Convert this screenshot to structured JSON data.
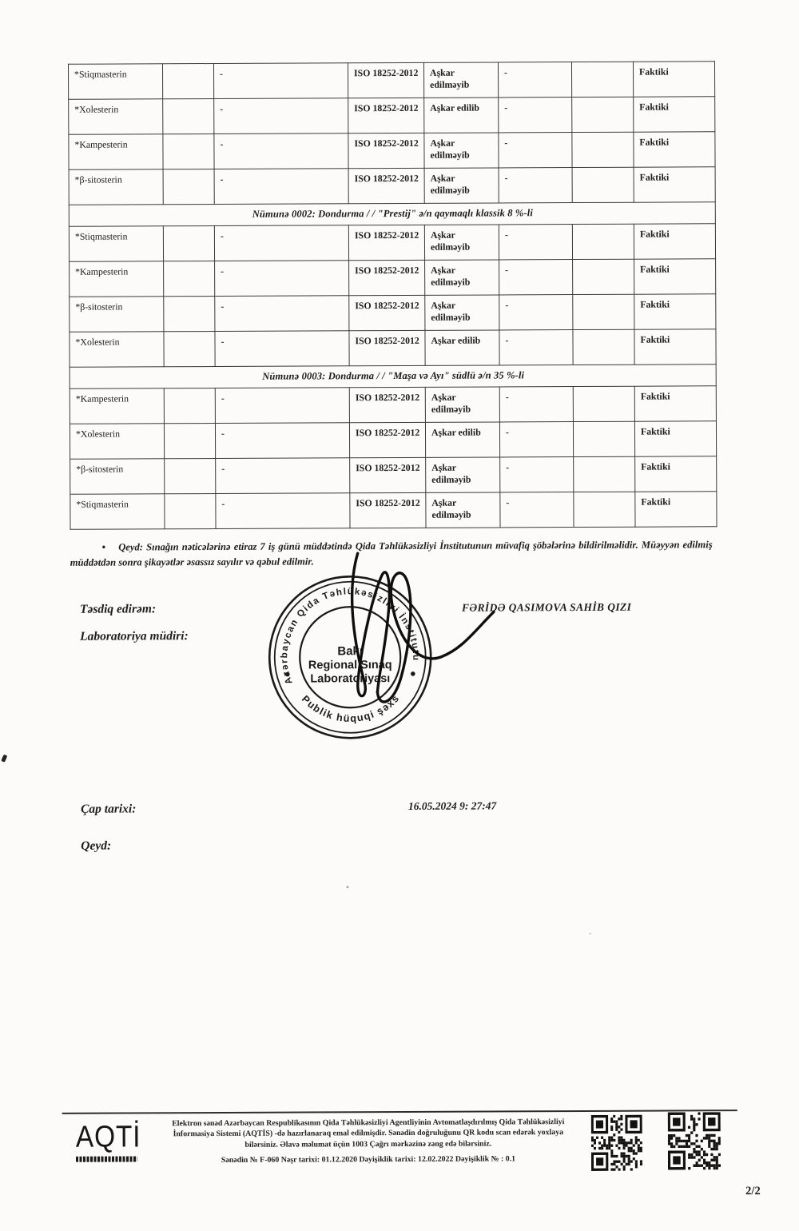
{
  "doc": {
    "table": {
      "sections": [
        {
          "header": "",
          "rows": [
            {
              "parameter": "*Stiqmasterin",
              "blank1": "",
              "value": "-",
              "method": "ISO 18252-2012",
              "result": "Aşkar edilməyib",
              "norm": "-",
              "blank2": "",
              "type": "Faktiki"
            },
            {
              "parameter": "*Xolesterin",
              "blank1": "",
              "value": "-",
              "method": "ISO 18252-2012",
              "result": "Aşkar edilib",
              "norm": "-",
              "blank2": "",
              "type": "Faktiki"
            },
            {
              "parameter": "*Kampesterin",
              "blank1": "",
              "value": "-",
              "method": "ISO 18252-2012",
              "result": "Aşkar edilməyib",
              "norm": "-",
              "blank2": "",
              "type": "Faktiki"
            },
            {
              "parameter": "*β-sitosterin",
              "blank1": "",
              "value": "-",
              "method": "ISO 18252-2012",
              "result": "Aşkar edilməyib",
              "norm": "-",
              "blank2": "",
              "type": "Faktiki"
            }
          ]
        },
        {
          "header": "Nümunə 0002: Dondurma / / \"Prestij\" ə/n qaymaqlı klassik 8 %-li",
          "rows": [
            {
              "parameter": "*Stiqmasterin",
              "blank1": "",
              "value": "-",
              "method": "ISO 18252-2012",
              "result": "Aşkar edilməyib",
              "norm": "-",
              "blank2": "",
              "type": "Faktiki"
            },
            {
              "parameter": "*Kampesterin",
              "blank1": "",
              "value": "-",
              "method": "ISO 18252-2012",
              "result": "Aşkar edilməyib",
              "norm": "-",
              "blank2": "",
              "type": "Faktiki"
            },
            {
              "parameter": "*β-sitosterin",
              "blank1": "",
              "value": "-",
              "method": "ISO 18252-2012",
              "result": "Aşkar edilməyib",
              "norm": "-",
              "blank2": "",
              "type": "Faktiki"
            },
            {
              "parameter": "*Xolesterin",
              "blank1": "",
              "value": "-",
              "method": "ISO 18252-2012",
              "result": "Aşkar edilib",
              "norm": "-",
              "blank2": "",
              "type": "Faktiki"
            }
          ]
        },
        {
          "header": "Nümunə 0003: Dondurma / / \"Maşa və Ayı\" südlü ə/n 35 %-li",
          "rows": [
            {
              "parameter": "*Kampesterin",
              "blank1": "",
              "value": "-",
              "method": "ISO 18252-2012",
              "result": "Aşkar edilməyib",
              "norm": "-",
              "blank2": "",
              "type": "Faktiki"
            },
            {
              "parameter": "*Xolesterin",
              "blank1": "",
              "value": "-",
              "method": "ISO 18252-2012",
              "result": "Aşkar edilib",
              "norm": "-",
              "blank2": "",
              "type": "Faktiki"
            },
            {
              "parameter": "*β-sitosterin",
              "blank1": "",
              "value": "-",
              "method": "ISO 18252-2012",
              "result": "Aşkar edilməyib",
              "norm": "-",
              "blank2": "",
              "type": "Faktiki"
            },
            {
              "parameter": "*Stiqmasterin",
              "blank1": "",
              "value": "-",
              "method": "ISO 18252-2012",
              "result": "Aşkar edilməyib",
              "norm": "-",
              "blank2": "",
              "type": "Faktiki"
            }
          ]
        }
      ]
    },
    "note": {
      "bullet": "•",
      "label": "Qeyd:",
      "text": "Sınağın nəticələrinə etiraz 7 iş günü müddətində Qida Təhlükəsizliyi İnstitutunun müvafiq şöbələrinə bildirilməlidir. Müəyyən edilmiş müddətdən sonra şikayətlər əsassız sayılır və qəbul edilmir."
    },
    "approval": {
      "approve_label": "Təsdiq edirəm:",
      "role_label": "Laboratoriya müdiri:",
      "approver_name": "FƏRİDƏ QASIMOVA SAHİB QIZI"
    },
    "stamp": {
      "outer_top": "Azərbaycan Qida Təhlükəsizliyi İnstitutu",
      "outer_bottom": "Publik hüquqi şəxs",
      "center_line1": "Bakı",
      "center_line2": "Regional Sınaq",
      "center_line3": "Laboratoriyası"
    },
    "print": {
      "label": "Çap tarixi:",
      "value": "16.05.2024 9: 27:47"
    },
    "qeyd_label": "Qeyd:",
    "footer": {
      "logo_text": "AQTİ",
      "paragraph": "Elektron sənəd Azərbaycan Respublikasının Qida Təhlükəsizliyi Agentliyinin Avtomatlaşdırılmış Qida Təhlükəsizliyi İnformasiya Sistemi (AQTİS) -də hazırlanaraq emal edilmişdir. Sənədin doğruluğunu QR kodu scan edərək yoxlaya bilərsiniz. Əlavə məlumat üçün 1003 Çağrı mərkəzinə zəng edə bilərsiniz.",
      "doc_line": "Sənədin №  F-060  Nəşr tarixi: 01.12.2020  Dəyişiklik tarixi:  12.02.2022  Dəyişiklik № : 0.1",
      "page_number": "2/2"
    },
    "ink_color": "#1d1d1b"
  }
}
